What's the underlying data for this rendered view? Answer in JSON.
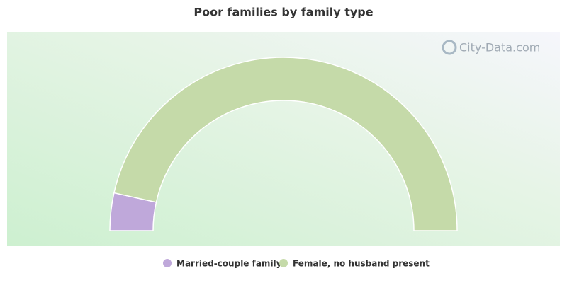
{
  "chart_data": {
    "type": "half-donut",
    "title": "Poor families by family type",
    "watermark": "City-Data.com",
    "categories": [
      "Married-couple family",
      "Female, no husband present"
    ],
    "values": [
      7,
      93
    ],
    "colors": [
      "#bfa8da",
      "#c5daa9"
    ]
  }
}
